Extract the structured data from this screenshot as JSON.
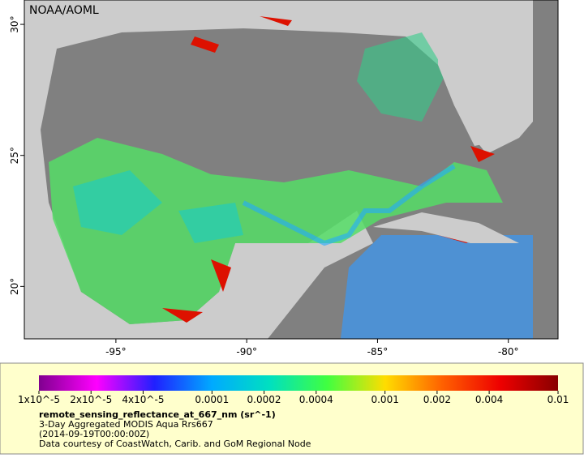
{
  "map": {
    "title": "NOAA/AOML",
    "lonlim": [
      -98.5,
      -78.1
    ],
    "latlim": [
      18.0,
      30.93
    ],
    "xticks": [
      {
        "value": -95,
        "label": "-95°"
      },
      {
        "value": -90,
        "label": "-90°"
      },
      {
        "value": -85,
        "label": "-85°"
      },
      {
        "value": -80,
        "label": "-80°"
      }
    ],
    "yticks": [
      {
        "value": 20,
        "label": "20°"
      },
      {
        "value": 25,
        "label": "25°"
      },
      {
        "value": 30,
        "label": "30°"
      }
    ]
  },
  "colorbar": {
    "scale": "log",
    "lim": [
      1e-05,
      0.01
    ],
    "colors": [
      "#80008f",
      "#ff00ff",
      "#2020ff",
      "#00aaff",
      "#00e0c0",
      "#40ff40",
      "#ffdd00",
      "#ff6000",
      "#ee0000",
      "#880000"
    ],
    "ticks": [
      {
        "value": 1e-05,
        "label": "1x10^-5"
      },
      {
        "value": 2e-05,
        "label": "2x10^-5"
      },
      {
        "value": 4e-05,
        "label": "4x10^-5"
      },
      0.0001,
      0.0002,
      0.0004,
      0.001,
      0.002,
      0.004,
      0.01
    ]
  },
  "caption": {
    "variable": "remote_sensing_reflectance_at_667_nm (sr^-1)",
    "product": "3-Day Aggregated MODIS Aqua Rrs667",
    "time": "(2014-09-19T00:00:00Z)",
    "credit": "Data courtesy of CoastWatch, Carib. and GoM Regional Node"
  }
}
